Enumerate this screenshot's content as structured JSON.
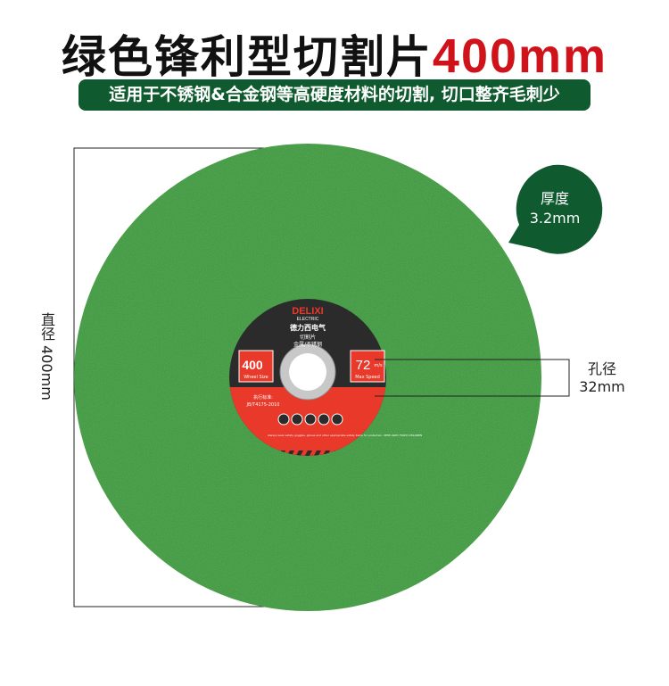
{
  "header": {
    "title": "绿色锋利型切割片",
    "title_size": "400mm",
    "subtitle": "适用于不锈钢&合金钢等高硬度材料的切割, 切口整齐毛刺少"
  },
  "dimensions": {
    "thickness_label": "厚度",
    "thickness_value": "3.2mm",
    "diameter": "直径 400mm",
    "bore_label": "孔径",
    "bore_value": "32mm"
  },
  "disc_label": {
    "brand": "DELIXI",
    "brand_sub": "ELECTRIC",
    "brand_cn": "德力西电气",
    "product": "切割片",
    "material": "金属/不锈钢",
    "size_value": "400",
    "size_caption": "Wheel Size",
    "speed_value": "72",
    "speed_unit": "m/s",
    "speed_caption": "Max Speed",
    "standard_label": "执行标准:",
    "standard_code": "JB/T4175-2010",
    "warning": "Always wear safety goggles, gloves and other appropriate safety items for protection. KEEP AWAY FROM CHILDREN"
  },
  "colors": {
    "disc_green": "#3a9a3a",
    "brand_red": "#e8392a",
    "banner_green": "#0f5a2e",
    "title_red": "#d0121b"
  }
}
